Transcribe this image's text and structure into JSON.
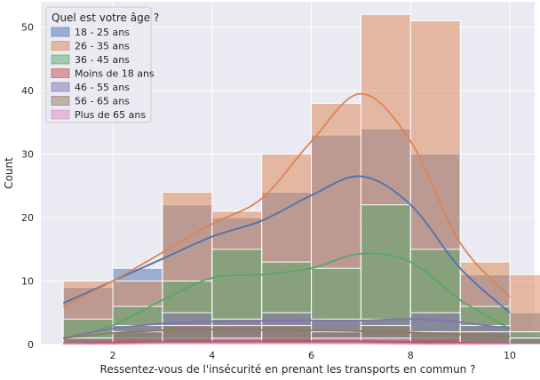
{
  "chart_data": {
    "type": "histogram",
    "xlabel": "Ressentez-vous de l'insécurité en prenant les transports en commun ?",
    "ylabel": "Count",
    "xlim": [
      0.55,
      10.5
    ],
    "ylim": [
      0,
      54
    ],
    "xticks": [
      2,
      4,
      6,
      8,
      10
    ],
    "yticks": [
      0,
      10,
      20,
      30,
      40,
      50
    ],
    "grid": true,
    "style": "seaborn-darkgrid",
    "legend": {
      "title": "Quel est votre âge ?",
      "placement": "top-left"
    },
    "bin_edges": [
      1,
      2,
      3,
      4,
      5,
      6,
      7,
      8,
      9,
      10
    ],
    "series": [
      {
        "name": "18 - 25 ans",
        "color": "#4c72b0",
        "counts": [
          9,
          12,
          22,
          20,
          24,
          33,
          34,
          30,
          11,
          5
        ],
        "kde": [
          [
            1,
            6.5
          ],
          [
            2,
            10
          ],
          [
            3,
            13.5
          ],
          [
            4,
            17
          ],
          [
            5,
            19.5
          ],
          [
            6,
            23.5
          ],
          [
            7,
            26.5
          ],
          [
            8,
            22
          ],
          [
            9,
            12
          ],
          [
            10,
            5
          ]
        ]
      },
      {
        "name": "26 - 35 ans",
        "color": "#dd8452",
        "counts": [
          10,
          10,
          24,
          21,
          30,
          38,
          52,
          51,
          13,
          11
        ],
        "kde": [
          [
            1,
            6
          ],
          [
            2,
            10
          ],
          [
            3,
            14.5
          ],
          [
            4,
            19
          ],
          [
            5,
            23
          ],
          [
            6,
            32
          ],
          [
            7,
            39.5
          ],
          [
            8,
            32
          ],
          [
            9,
            16
          ],
          [
            10,
            7.5
          ]
        ]
      },
      {
        "name": "36 - 45 ans",
        "color": "#55a868",
        "counts": [
          4,
          6,
          10,
          15,
          13,
          12,
          22,
          15,
          6,
          2
        ],
        "kde": [
          [
            1,
            1
          ],
          [
            2,
            3
          ],
          [
            3,
            7
          ],
          [
            4,
            10.5
          ],
          [
            5,
            11
          ],
          [
            6,
            12
          ],
          [
            7,
            14.3
          ],
          [
            8,
            13
          ],
          [
            9,
            7
          ],
          [
            10,
            2.5
          ]
        ]
      },
      {
        "name": "Moins de 18 ans",
        "color": "#c44e52",
        "counts": [
          0,
          1,
          1,
          1,
          1,
          1,
          1,
          1,
          0,
          0
        ],
        "kde": [
          [
            1,
            0.2
          ],
          [
            2,
            0.3
          ],
          [
            3,
            0.4
          ],
          [
            4,
            0.5
          ],
          [
            5,
            0.5
          ],
          [
            6,
            0.5
          ],
          [
            7,
            0.5
          ],
          [
            8,
            0.4
          ],
          [
            9,
            0.3
          ],
          [
            10,
            0.2
          ]
        ]
      },
      {
        "name": "46 - 55 ans",
        "color": "#8172b3",
        "counts": [
          1,
          3,
          5,
          4,
          5,
          4,
          4,
          5,
          3,
          1
        ],
        "kde": [
          [
            1,
            1
          ],
          [
            2,
            2.5
          ],
          [
            3,
            3.3
          ],
          [
            4,
            3.6
          ],
          [
            5,
            3.7
          ],
          [
            6,
            3.8
          ],
          [
            7,
            3.8
          ],
          [
            8,
            4
          ],
          [
            9,
            3.5
          ],
          [
            10,
            2.5
          ]
        ]
      },
      {
        "name": "56 - 65 ans",
        "color": "#937860",
        "counts": [
          1,
          2,
          3,
          3,
          3,
          2,
          3,
          2,
          2,
          1
        ],
        "kde": [
          [
            1,
            1
          ],
          [
            2,
            1.8
          ],
          [
            3,
            2.2
          ],
          [
            4,
            2.4
          ],
          [
            5,
            2.3
          ],
          [
            6,
            2.2
          ],
          [
            7,
            2.1
          ],
          [
            8,
            1.9
          ],
          [
            9,
            1.6
          ],
          [
            10,
            1.2
          ]
        ]
      },
      {
        "name": "Plus de 65 ans",
        "color": "#da8bc3",
        "counts": [
          0,
          0,
          0,
          1,
          0,
          1,
          1,
          0,
          0,
          0
        ],
        "kde": [
          [
            1,
            0.1
          ],
          [
            2,
            0.1
          ],
          [
            3,
            0.2
          ],
          [
            4,
            0.2
          ],
          [
            5,
            0.2
          ],
          [
            6,
            0.2
          ],
          [
            7,
            0.2
          ],
          [
            8,
            0.1
          ],
          [
            9,
            0.1
          ],
          [
            10,
            0.1
          ]
        ]
      }
    ]
  }
}
